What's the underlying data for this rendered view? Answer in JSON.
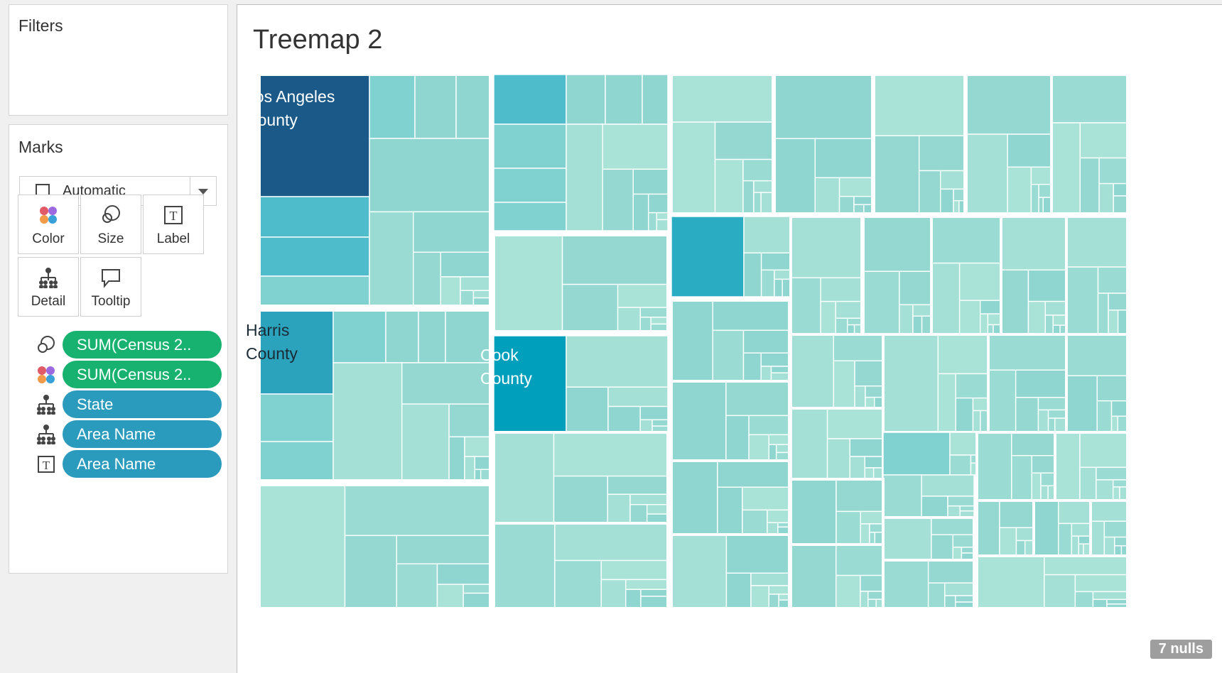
{
  "filters": {
    "title": "Filters"
  },
  "marks": {
    "title": "Marks",
    "mark_type": "Automatic",
    "buttons": [
      {
        "label": "Color",
        "icon": "color-palette-icon"
      },
      {
        "label": "Size",
        "icon": "size-icon"
      },
      {
        "label": "Label",
        "icon": "label-icon"
      },
      {
        "label": "Detail",
        "icon": "detail-icon"
      },
      {
        "label": "Tooltip",
        "icon": "tooltip-icon"
      }
    ],
    "fields": [
      {
        "label": "SUM(Census 2..",
        "icon": "size-icon",
        "color": "#17b26f"
      },
      {
        "label": "SUM(Census 2..",
        "icon": "color-palette-icon",
        "color": "#17b26f"
      },
      {
        "label": "State",
        "icon": "detail-icon",
        "color": "#2a9bbd"
      },
      {
        "label": "Area Name",
        "icon": "detail-icon",
        "color": "#2a9bbd"
      },
      {
        "label": "Area Name",
        "icon": "label-icon",
        "color": "#2a9bbd"
      }
    ]
  },
  "viz": {
    "title": "Treemap 2",
    "labels": {
      "la": "Los Angeles County",
      "harris": "Harris County",
      "cook": "Cook County"
    },
    "nulls_badge": "7 nulls"
  },
  "colors": {
    "darkest": "#1b5a88",
    "dark": "#2ba3bd",
    "mid": "#4fbccb",
    "light": "#7fd2d0",
    "lightest": "#a4e0d5"
  }
}
